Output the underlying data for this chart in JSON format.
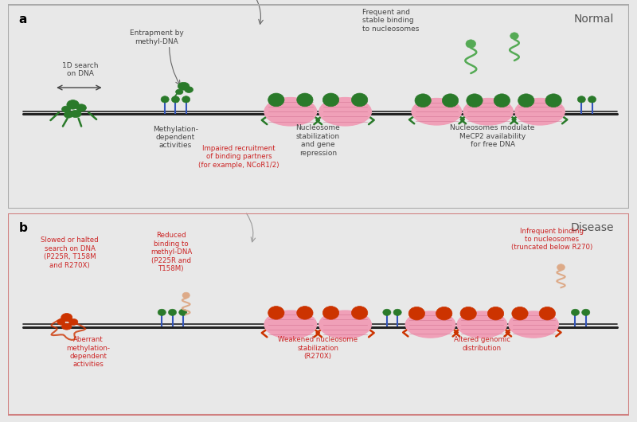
{
  "panel_a_bg": "#ffffff",
  "panel_b_bg": "#fce4e4",
  "panel_border_color": "#aaaaaa",
  "panel_b_border_color": "#d08080",
  "text_color_normal": "#444444",
  "text_color_disease": "#cc2222",
  "normal_label": "Normal",
  "disease_label": "Disease",
  "panel_a_label": "a",
  "panel_b_label": "b",
  "dna_color": "#222222",
  "mecp2_normal_color": "#2a7a2a",
  "mecp2_disease_color": "#cc3300",
  "nucleosome_pink": "#f0a0b8",
  "nucleosome_stripe": "#d07090",
  "methyl_blue": "#3355bb",
  "methyl_green": "#2a7a2a",
  "partner_olive": "#888800",
  "partner_hole": "#cccc70",
  "free_mecp2_color": "#55aa55",
  "truncated_mecp2_color": "#ddaa88"
}
